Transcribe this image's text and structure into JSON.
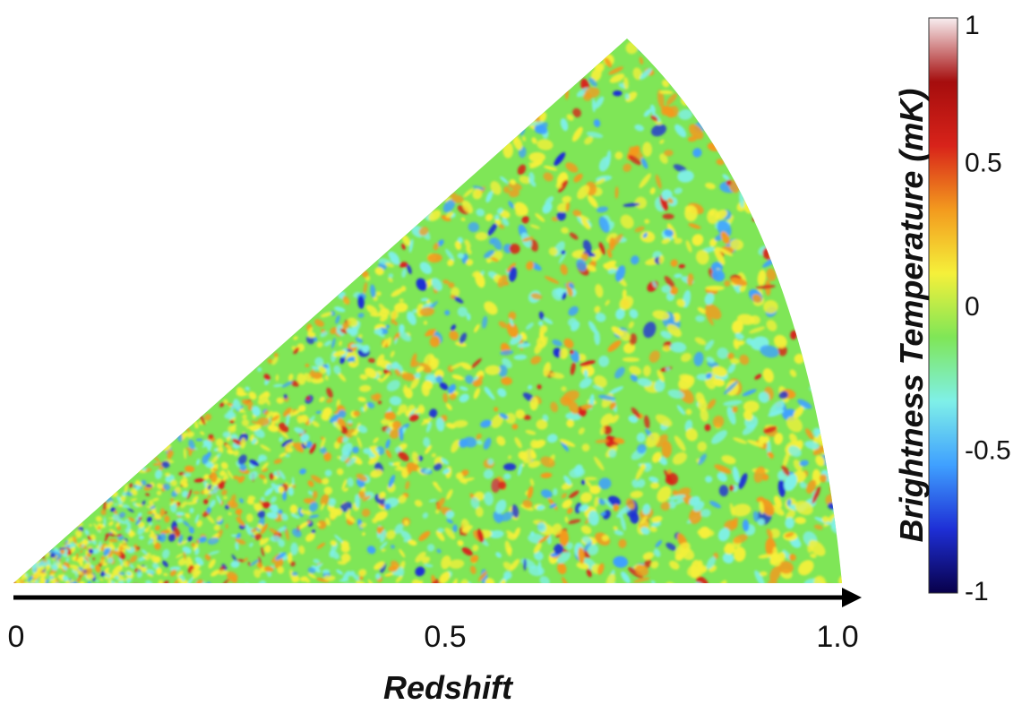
{
  "chart_data": {
    "type": "heatmap",
    "title": "",
    "xlabel": "Redshift",
    "xticks": [
      "0",
      "0.5",
      "1.0"
    ],
    "xlim": [
      0,
      1.0
    ],
    "colorbar": {
      "label": "Brightness Temperature (mK)",
      "range": [
        -1,
        1
      ],
      "ticks": [
        "1",
        "0.5",
        "0",
        "-0.5",
        "-1"
      ],
      "colormap": "jet-like",
      "colors": [
        "#08004a",
        "#1e2fd6",
        "#3fa0ff",
        "#7ff0e8",
        "#7fe657",
        "#f5f03a",
        "#f39a1e",
        "#d8231a",
        "#a50d0d",
        "#f8eef0"
      ]
    },
    "map_shape": "wedge (lightcone slice from redshift 0 to 1.0)"
  }
}
